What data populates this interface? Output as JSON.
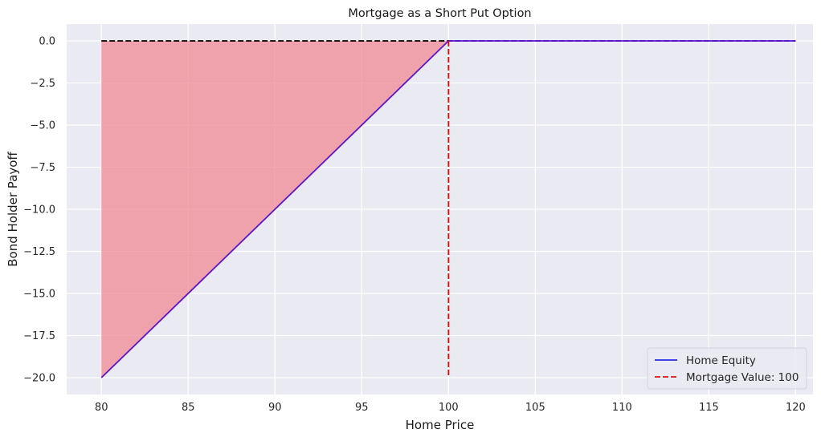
{
  "chart_data": {
    "type": "line",
    "title": "Mortgage as a Short Put Option",
    "xlabel": "Home Price",
    "ylabel": "Bond Holder Payoff",
    "xlim": [
      78,
      121
    ],
    "ylim": [
      -21,
      1
    ],
    "x_ticks": [
      80,
      85,
      90,
      95,
      100,
      105,
      110,
      115,
      120
    ],
    "x_tick_labels": [
      "80",
      "85",
      "90",
      "95",
      "100",
      "105",
      "110",
      "115",
      "120"
    ],
    "y_ticks": [
      0,
      -2.5,
      -5,
      -7.5,
      -10,
      -12.5,
      -15,
      -17.5,
      -20
    ],
    "y_tick_labels": [
      "0.0",
      "−2.5",
      "−5.0",
      "−7.5",
      "−10.0",
      "−12.5",
      "−15.0",
      "−17.5",
      "−20.0"
    ],
    "grid": true,
    "legend_position": "bottom-right",
    "series": [
      {
        "name": "Home Equity",
        "style": "solid",
        "color": "#5a14d8",
        "legend_color": "#2a2ae8",
        "points": [
          [
            80,
            -20
          ],
          [
            100,
            0
          ],
          [
            120,
            0
          ]
        ]
      },
      {
        "name": "Mortgage Value: 100",
        "style": "dashed",
        "color": "#e01010",
        "points": [
          [
            100,
            0
          ],
          [
            100,
            -20
          ]
        ]
      }
    ],
    "reference_lines": [
      {
        "style": "dashed",
        "color": "#000000",
        "points": [
          [
            80,
            0
          ],
          [
            120,
            0
          ]
        ]
      }
    ],
    "fill_area": {
      "color": "#f08a93",
      "opacity": 0.75,
      "points": [
        [
          80,
          0
        ],
        [
          100,
          0
        ],
        [
          80,
          -20
        ]
      ]
    },
    "background_color": "#eaeaf2",
    "grid_color": "#ffffff"
  }
}
